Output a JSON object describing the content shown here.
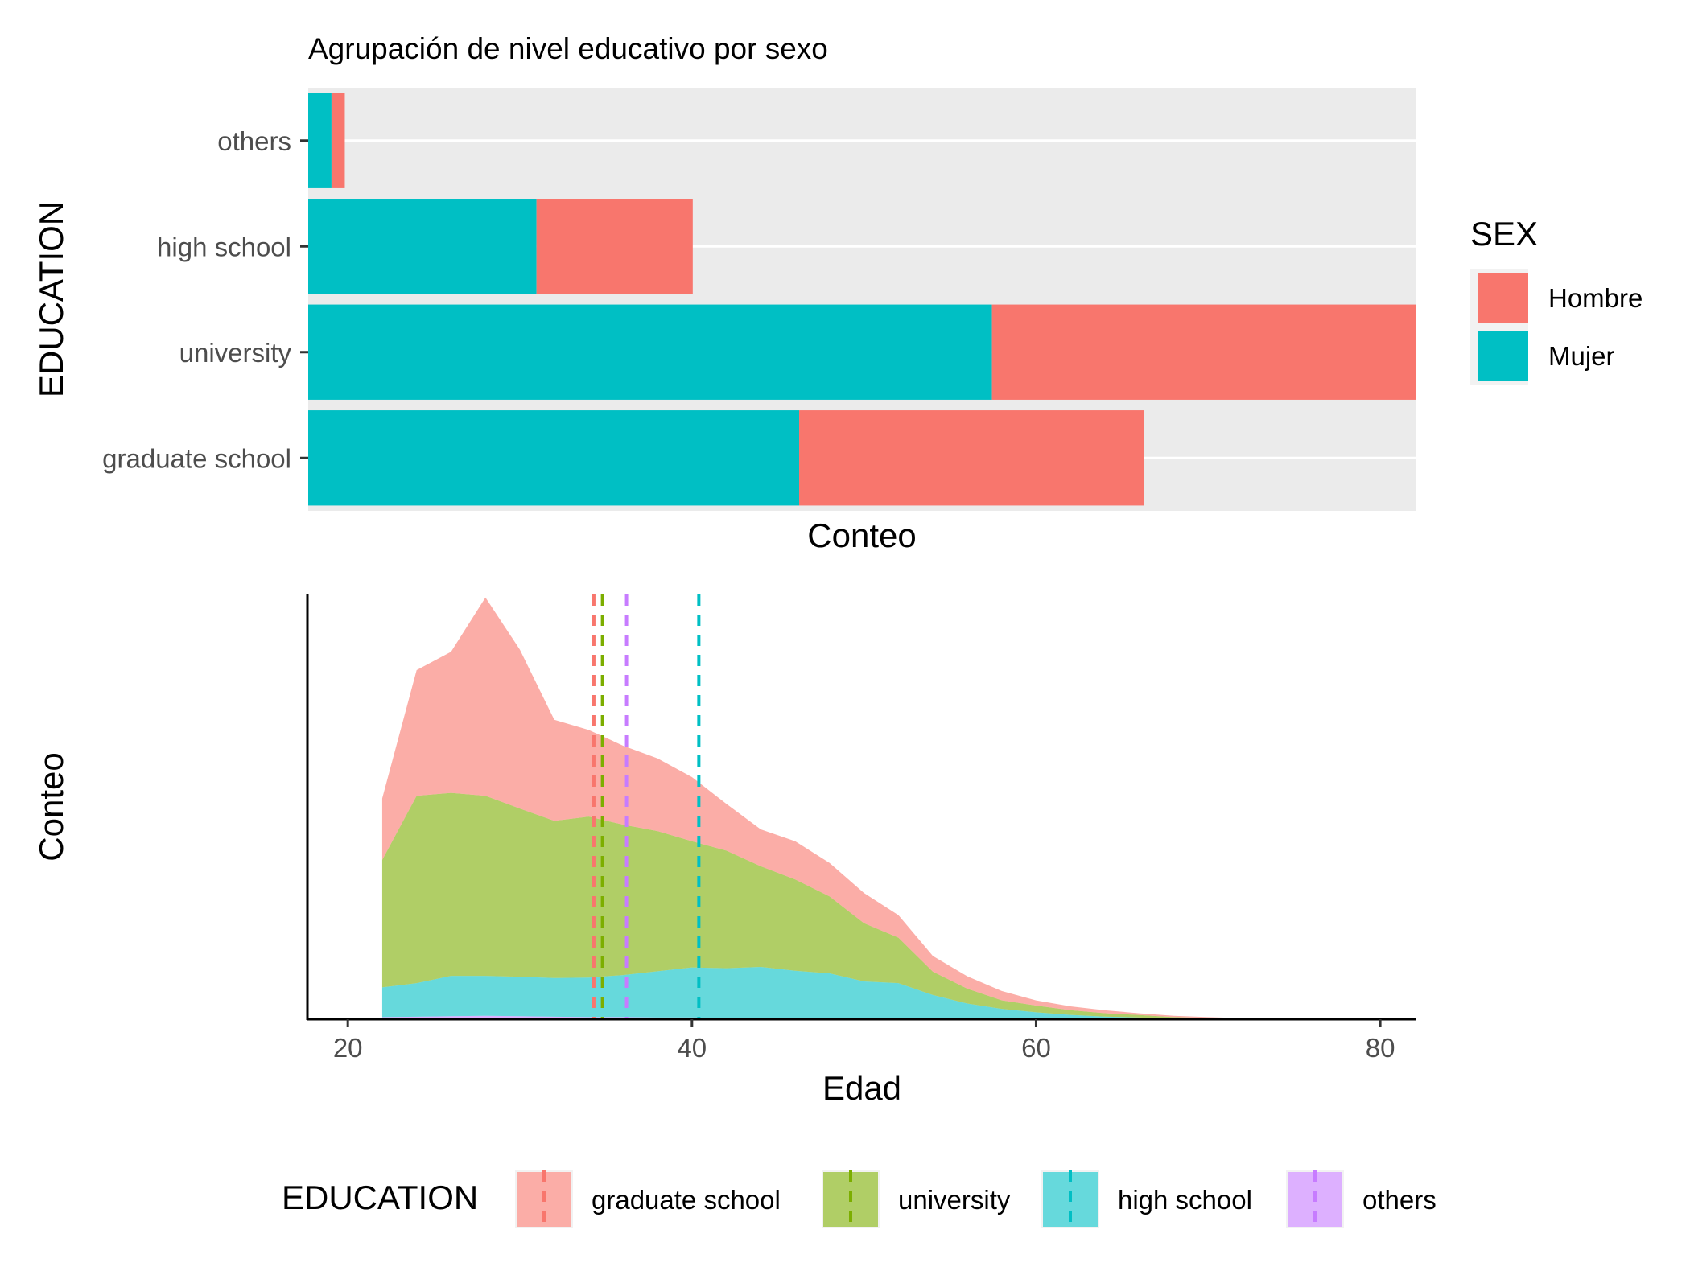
{
  "chart_data": [
    {
      "type": "bar",
      "orientation": "horizontal",
      "stacked": true,
      "title": "Agrupación de nivel educativo por sexo",
      "xlabel": "Conteo",
      "ylabel": "EDUCATION",
      "x_ticks_shown": false,
      "xlim": [
        0,
        1
      ],
      "categories": [
        "others",
        "high school",
        "university",
        "graduate school"
      ],
      "series": [
        {
          "name": "Mujer",
          "color": "#00BFC4",
          "values": [
            0.021,
            0.206,
            0.617,
            0.443
          ]
        },
        {
          "name": "Hombre",
          "color": "#F8766D",
          "values": [
            0.012,
            0.141,
            0.383,
            0.311
          ]
        }
      ],
      "legend": {
        "title": "SEX",
        "position": "right",
        "items": [
          "Hombre",
          "Mujer"
        ]
      },
      "grid": true,
      "background": "#EBEBEB"
    },
    {
      "type": "area",
      "stacked": true,
      "xlabel": "Edad",
      "ylabel": "Conteo",
      "y_ticks_shown": false,
      "xlim": [
        17.7,
        82.1
      ],
      "ylim": [
        0,
        1
      ],
      "x_ticks": [
        20,
        40,
        60,
        80
      ],
      "x": [
        22,
        24,
        26,
        28,
        30,
        32,
        34,
        36,
        38,
        40,
        42,
        44,
        46,
        48,
        50,
        52,
        54,
        56,
        58,
        60,
        62,
        64,
        66,
        68,
        70,
        72,
        74,
        76,
        78,
        80
      ],
      "series": [
        {
          "name": "others",
          "color": "#C77CFF",
          "values": [
            0.005,
            0.006,
            0.007,
            0.008,
            0.007,
            0.006,
            0.005,
            0.005,
            0.004,
            0.004,
            0.003,
            0.003,
            0.002,
            0.002,
            0.001,
            0.001,
            0.001,
            0.001,
            0.0005,
            0.0003,
            0.0002,
            0.0001,
            0,
            0,
            0,
            0,
            0,
            0,
            0,
            0
          ]
        },
        {
          "name": "high school",
          "color": "#00BFC4",
          "values": [
            0.07,
            0.079,
            0.095,
            0.094,
            0.093,
            0.091,
            0.093,
            0.099,
            0.109,
            0.118,
            0.117,
            0.12,
            0.112,
            0.106,
            0.088,
            0.084,
            0.056,
            0.036,
            0.024,
            0.016,
            0.01,
            0.006,
            0.004,
            0.002,
            0.001,
            0.0005,
            0.0002,
            0.0001,
            0,
            0
          ]
        },
        {
          "name": "university",
          "color": "#7CAE00",
          "values": [
            0.3,
            0.441,
            0.431,
            0.424,
            0.396,
            0.37,
            0.379,
            0.354,
            0.33,
            0.297,
            0.277,
            0.237,
            0.215,
            0.181,
            0.137,
            0.107,
            0.055,
            0.035,
            0.02,
            0.016,
            0.011,
            0.008,
            0.006,
            0.003,
            0.002,
            0.001,
            0.0005,
            0.0002,
            0.0001,
            0
          ]
        },
        {
          "name": "graduate school",
          "color": "#F8766D",
          "values": [
            0.145,
            0.296,
            0.332,
            0.467,
            0.374,
            0.238,
            0.204,
            0.186,
            0.171,
            0.151,
            0.11,
            0.087,
            0.09,
            0.079,
            0.071,
            0.053,
            0.037,
            0.029,
            0.022,
            0.012,
            0.009,
            0.007,
            0.004,
            0.003,
            0.002,
            0.001,
            0.0005,
            0.0002,
            0.0001,
            0
          ]
        }
      ],
      "means": [
        {
          "name": "graduate school",
          "x": 34.3,
          "color": "#F8766D"
        },
        {
          "name": "university",
          "x": 34.8,
          "color": "#7CAE00"
        },
        {
          "name": "others",
          "x": 36.2,
          "color": "#C77CFF"
        },
        {
          "name": "high school",
          "x": 40.4,
          "color": "#00BFC4"
        }
      ],
      "legend": {
        "title": "EDUCATION",
        "position": "bottom",
        "items": [
          "graduate school",
          "university",
          "high school",
          "others"
        ]
      },
      "grid": false
    }
  ]
}
